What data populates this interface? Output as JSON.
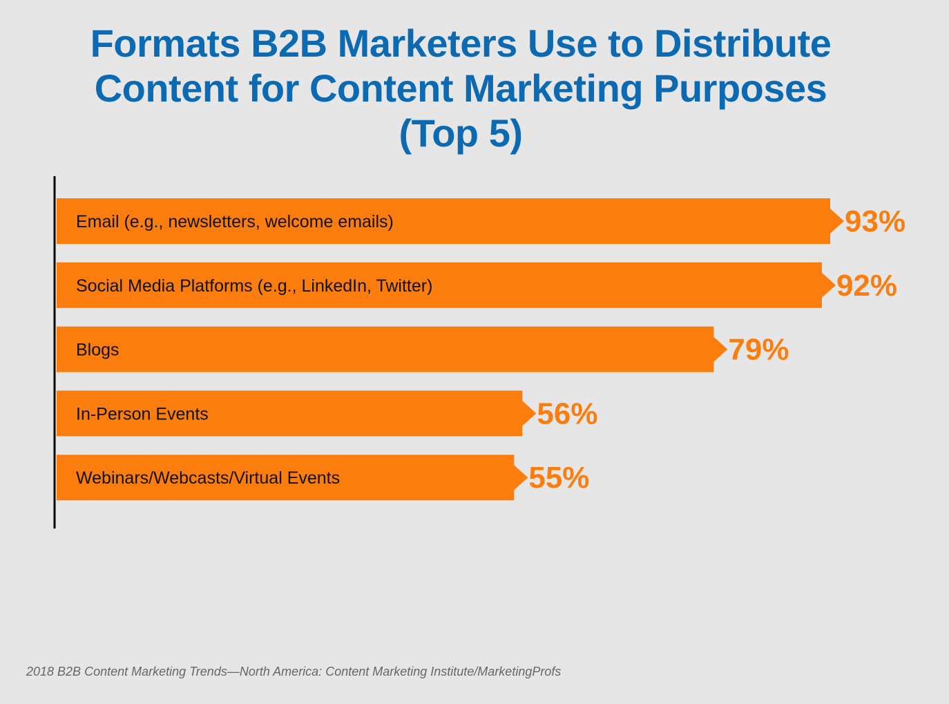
{
  "chart_data": {
    "type": "bar",
    "orientation": "horizontal",
    "title_lines": [
      "Formats B2B Marketers Use to Distribute",
      "Content for Content Marketing Purposes",
      "(Top 5)"
    ],
    "categories": [
      "Email (e.g., newsletters, welcome emails)",
      "Social Media Platforms (e.g., LinkedIn, Twitter)",
      "Blogs",
      "In-Person Events",
      "Webinars/Webcasts/Virtual Events"
    ],
    "values": [
      93,
      92,
      79,
      56,
      55
    ],
    "data_labels": [
      "93%",
      "92%",
      "79%",
      "56%",
      "55%"
    ],
    "xlim": [
      0,
      100
    ],
    "xlabel": "",
    "ylabel": "",
    "grid": false,
    "bar_color": "#fb7d0d",
    "title_color": "#0b6ab2"
  },
  "source": "2018 B2B Content Marketing Trends—North America: Content Marketing Institute/MarketingProfs"
}
